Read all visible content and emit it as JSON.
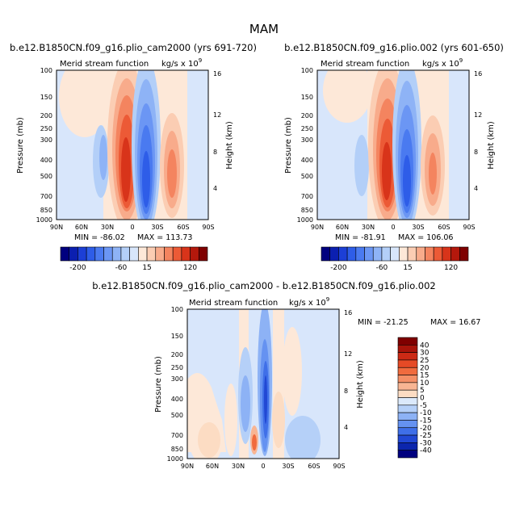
{
  "figure_title": "MAM",
  "chart_data": [
    {
      "type": "heatmap",
      "title": "b.e12.B1850CN.f09_g16.plio_cam2000 (yrs 691-720)",
      "left_string": "Merid stream function",
      "units": "kg/s x 10",
      "units_exp": "9",
      "xlabel": "",
      "ylabel": "Pressure (mb)",
      "ylabel_right": "Height (km)",
      "x_ticks": [
        "90N",
        "60N",
        "30N",
        "0",
        "30S",
        "60S",
        "90S"
      ],
      "y_ticks": [
        "100",
        "150",
        "200",
        "250",
        "300",
        "400",
        "500",
        "700",
        "850",
        "1000"
      ],
      "y_right_ticks": [
        "16",
        "12",
        "8",
        "4"
      ],
      "xlim": [
        90,
        -90
      ],
      "ylim": [
        1000,
        100
      ],
      "min_label": "MIN = -86.02",
      "max_label": "MAX = 113.73",
      "min": -86.02,
      "max": 113.73,
      "cells": [
        {
          "lat": 60,
          "p": 400,
          "value": -8
        },
        {
          "lat": 45,
          "p": 350,
          "value": 6
        },
        {
          "lat": 22,
          "p": 400,
          "value": -35
        },
        {
          "lat": 8,
          "p": 400,
          "value": 113.73
        },
        {
          "lat": -8,
          "p": 400,
          "value": -86.02
        },
        {
          "lat": -28,
          "p": 350,
          "value": 4
        },
        {
          "lat": -42,
          "p": 500,
          "value": 45
        },
        {
          "lat": -65,
          "p": 300,
          "value": -5
        }
      ]
    },
    {
      "type": "heatmap",
      "title": "b.e12.B1850CN.f09_g16.plio.002 (yrs 601-650)",
      "left_string": "Merid stream function",
      "units": "kg/s x 10",
      "units_exp": "9",
      "xlabel": "",
      "ylabel": "Pressure (mb)",
      "ylabel_right": "Height (km)",
      "x_ticks": [
        "90N",
        "60N",
        "30N",
        "0",
        "30S",
        "60S",
        "90S"
      ],
      "y_ticks": [
        "100",
        "150",
        "200",
        "250",
        "300",
        "400",
        "500",
        "700",
        "850",
        "1000"
      ],
      "y_right_ticks": [
        "16",
        "12",
        "8",
        "4"
      ],
      "xlim": [
        90,
        -90
      ],
      "ylim": [
        1000,
        100
      ],
      "min_label": "MIN = -81.91",
      "max_label": "MAX = 106.06",
      "min": -81.91,
      "max": 106.06,
      "cells": [
        {
          "lat": 60,
          "p": 400,
          "value": -6
        },
        {
          "lat": 45,
          "p": 350,
          "value": 5
        },
        {
          "lat": 22,
          "p": 400,
          "value": -30
        },
        {
          "lat": 8,
          "p": 400,
          "value": 106.06
        },
        {
          "lat": -8,
          "p": 400,
          "value": -81.91
        },
        {
          "lat": -28,
          "p": 350,
          "value": 3
        },
        {
          "lat": -42,
          "p": 500,
          "value": 40
        },
        {
          "lat": -65,
          "p": 300,
          "value": -4
        }
      ]
    },
    {
      "type": "heatmap",
      "title": "b.e12.B1850CN.f09_g16.plio_cam2000 - b.e12.B1850CN.f09_g16.plio.002",
      "left_string": "Merid stream function",
      "units": "kg/s x 10",
      "units_exp": "9",
      "xlabel": "",
      "ylabel": "Pressure (mb)",
      "ylabel_right": "Height (km)",
      "x_ticks": [
        "90N",
        "60N",
        "30N",
        "0",
        "30S",
        "60S",
        "90S"
      ],
      "y_ticks": [
        "100",
        "150",
        "200",
        "250",
        "300",
        "400",
        "500",
        "700",
        "850",
        "1000"
      ],
      "y_right_ticks": [
        "16",
        "12",
        "8",
        "4"
      ],
      "xlim": [
        90,
        -90
      ],
      "ylim": [
        1000,
        100
      ],
      "min_label": "MIN = -21.25",
      "max_label": "MAX =  16.67",
      "min": -21.25,
      "max": 16.67,
      "cells": [
        {
          "lat": 55,
          "p": 600,
          "value": 5
        },
        {
          "lat": 18,
          "p": 500,
          "value": -8
        },
        {
          "lat": 10,
          "p": 780,
          "value": 16.67
        },
        {
          "lat": 0,
          "p": 450,
          "value": -21.25
        },
        {
          "lat": -5,
          "p": 600,
          "value": 5
        },
        {
          "lat": -25,
          "p": 350,
          "value": 4
        },
        {
          "lat": -45,
          "p": 600,
          "value": -5
        },
        {
          "lat": -70,
          "p": 400,
          "value": -3
        }
      ]
    }
  ],
  "colorbar_top": {
    "labels": [
      "-200",
      "-60",
      "15",
      "120"
    ],
    "colors": [
      "#00007f",
      "#0b1fb0",
      "#1c3fd6",
      "#2e5de8",
      "#4a7af0",
      "#6b96f4",
      "#8eb3f6",
      "#b3cff8",
      "#d8e6fb",
      "#fde8d8",
      "#fbcdb3",
      "#f8ab8b",
      "#f4845f",
      "#ec5a36",
      "#d8341a",
      "#b4180c",
      "#7f0000"
    ]
  },
  "colorbar_diff": {
    "labels": [
      "40",
      "30",
      "25",
      "20",
      "15",
      "10",
      "5",
      "0",
      "-5",
      "-10",
      "-15",
      "-20",
      "-25",
      "-30",
      "-40"
    ],
    "colors": [
      "#7f0000",
      "#a8140a",
      "#cc2a15",
      "#e54a26",
      "#f06b3e",
      "#f48f66",
      "#f8b593",
      "#fcdcc3",
      "#dbe9fb",
      "#b5d0f8",
      "#8db2f5",
      "#6592f1",
      "#3f6fe8",
      "#2148d4",
      "#0c26ad",
      "#00007f"
    ]
  }
}
